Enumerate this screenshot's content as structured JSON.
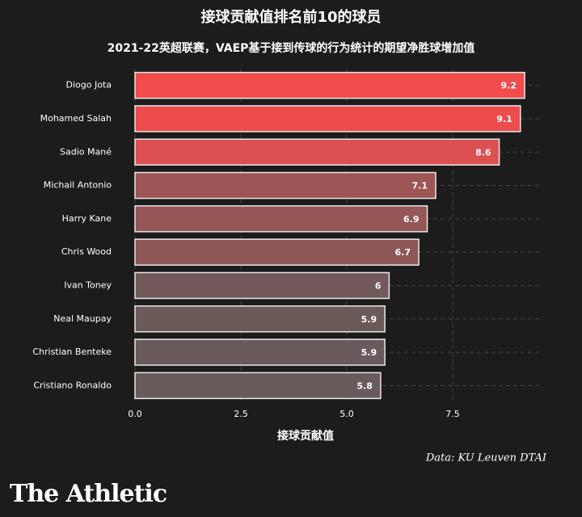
{
  "chart_data": {
    "type": "barh",
    "title": "接球贡献值排名前10的球员",
    "subtitle": "2021-22英超联赛，VAEP基于接到传球的行为统计的期望净胜球增加值",
    "x_label": "接球贡献值",
    "source": "Data: KU Leuven DTAI",
    "brand": "The Athletic",
    "categories": [
      "Diogo Jota",
      "Mohamed Salah",
      "Sadio Mané",
      "Michail Antonio",
      "Harry Kane",
      "Chris Wood",
      "Ivan Toney",
      "Neal Maupay",
      "Christian Benteke",
      "Cristiano Ronaldo"
    ],
    "values": [
      9.2,
      9.1,
      8.6,
      7.1,
      6.9,
      6.7,
      6,
      5.9,
      5.9,
      5.8
    ],
    "colors": [
      "#f24b4d",
      "#ec4c4e",
      "#dc5052",
      "#9e5556",
      "#955657",
      "#8d5758",
      "#725a5b",
      "#6c5a5b",
      "#6b5a5b",
      "#695a5b"
    ],
    "xlim": [
      0,
      9.6
    ],
    "xticks": [
      {
        "value": 0,
        "label": "0.0"
      },
      {
        "value": 2.5,
        "label": "2.5"
      },
      {
        "value": 5,
        "label": "5.0"
      },
      {
        "value": 7.5,
        "label": "7.5"
      }
    ],
    "grid": true
  }
}
